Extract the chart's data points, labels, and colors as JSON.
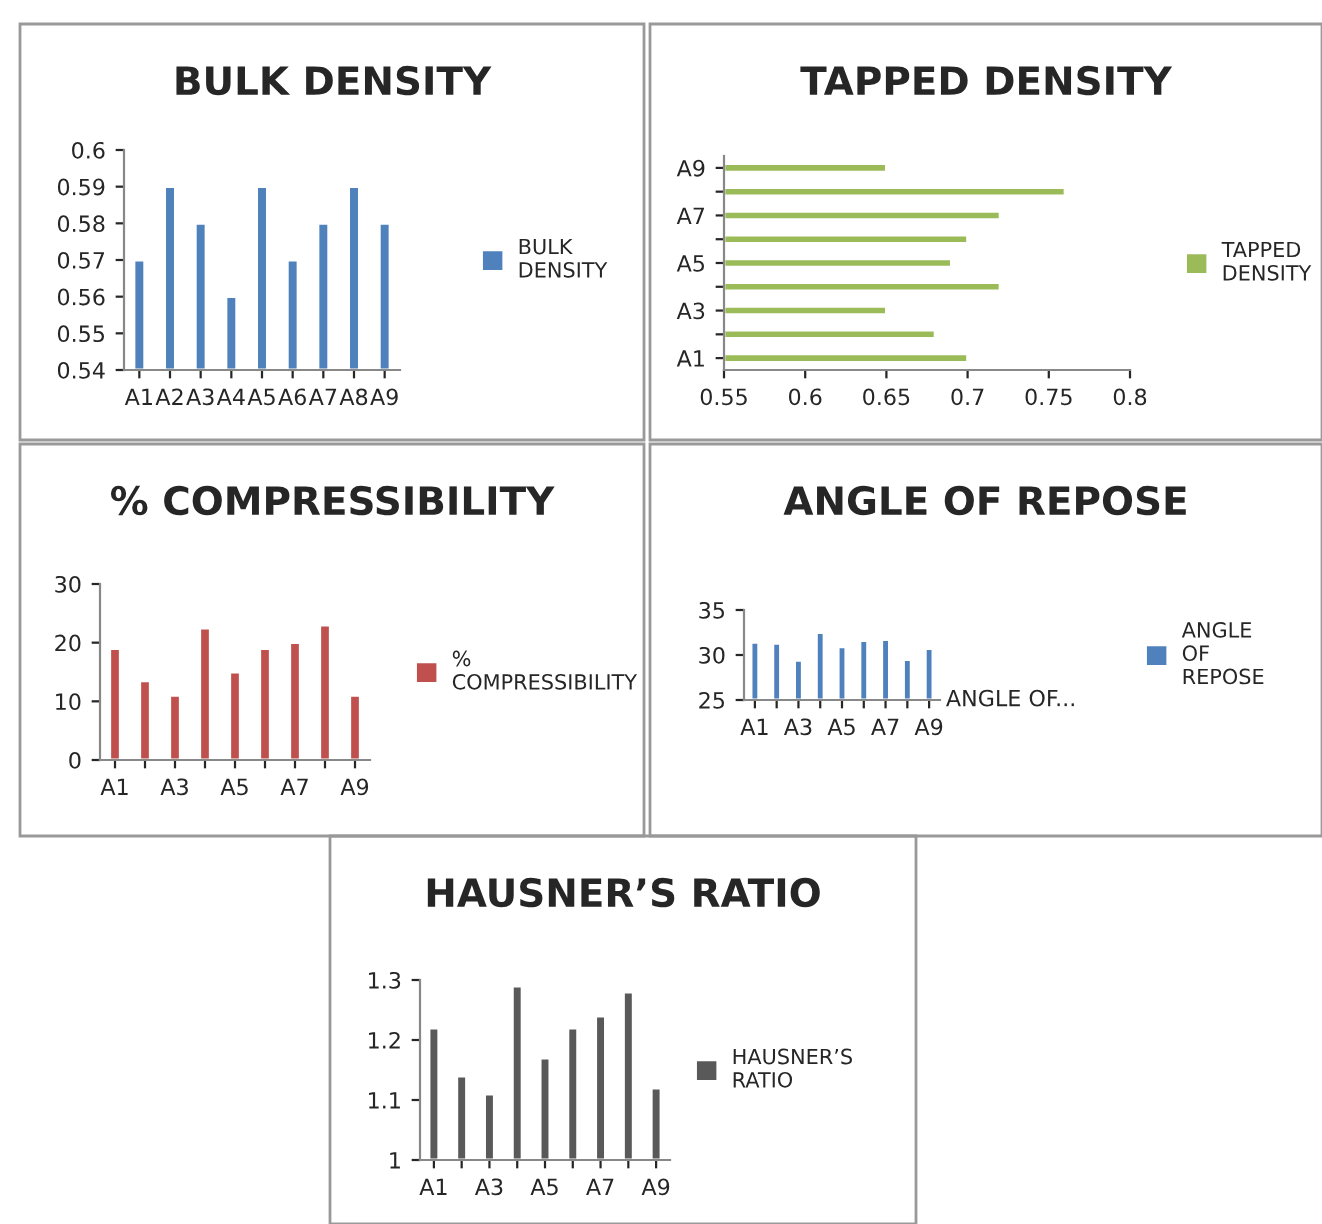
{
  "chart_data": [
    {
      "type": "bar",
      "title": "BULK DENSITY",
      "categories": [
        "A1",
        "A2",
        "A3",
        "A4",
        "A5",
        "A6",
        "A7",
        "A8",
        "A9"
      ],
      "series": [
        {
          "name": "BULK DENSITY",
          "color": "#4f81bd",
          "values": [
            0.57,
            0.59,
            0.58,
            0.56,
            0.59,
            0.57,
            0.58,
            0.59,
            0.58
          ]
        }
      ],
      "ylim": [
        0.54,
        0.6
      ],
      "yticks": [
        0.54,
        0.55,
        0.56,
        0.57,
        0.58,
        0.59,
        0.6
      ],
      "legend": "right",
      "grid": false
    },
    {
      "type": "bar",
      "title": "TAPPED DENSITY",
      "orientation": "horizontal",
      "categories": [
        "A9",
        null,
        "A7",
        null,
        "A5",
        null,
        "A3",
        null,
        "A1"
      ],
      "series": [
        {
          "name": "TAPPED DENSITY",
          "color": "#9bbb59",
          "values": [
            0.65,
            0.76,
            0.72,
            0.7,
            0.69,
            0.72,
            0.65,
            0.68,
            0.7
          ]
        }
      ],
      "xlim": [
        0.55,
        0.8
      ],
      "xticks": [
        0.55,
        0.6,
        0.65,
        0.7,
        0.75,
        0.8
      ],
      "legend": "right",
      "grid": false
    },
    {
      "type": "bar",
      "title": "% COMPRESSIBILITY",
      "categories": [
        "A1",
        null,
        "A3",
        null,
        "A5",
        null,
        "A7",
        null,
        "A9"
      ],
      "series": [
        {
          "name": "% COMPRESSIBILITY",
          "color": "#c0504d",
          "values": [
            19,
            13.5,
            11,
            22.5,
            15,
            19,
            20,
            23,
            11
          ]
        }
      ],
      "ylim": [
        0,
        30
      ],
      "yticks": [
        0,
        10,
        20,
        30
      ],
      "legend": "right",
      "grid": false
    },
    {
      "type": "bar",
      "title": "ANGLE OF REPOSE",
      "categories": [
        "A1",
        null,
        "A3",
        null,
        "A5",
        null,
        "A7",
        null,
        "A9"
      ],
      "series": [
        {
          "name": "ANGLE OF REPOSE",
          "color": "#4f81bd",
          "values": [
            31.4,
            31.3,
            29.4,
            32.5,
            30.9,
            31.6,
            31.7,
            29.5,
            30.7
          ]
        }
      ],
      "ylim": [
        25,
        35
      ],
      "yticks": [
        25,
        30,
        35
      ],
      "legend": "right",
      "grid": false,
      "annotations": [
        "ANGLE OF..."
      ]
    },
    {
      "type": "bar",
      "title": "HAUSNER’S RATIO",
      "categories": [
        "A1",
        null,
        "A3",
        null,
        "A5",
        null,
        "A7",
        null,
        "A9"
      ],
      "series": [
        {
          "name": "HAUSNER’S RATIO",
          "color": "#595959",
          "values": [
            1.22,
            1.14,
            1.11,
            1.29,
            1.17,
            1.22,
            1.24,
            1.28,
            1.12
          ]
        }
      ],
      "ylim": [
        1,
        1.3
      ],
      "yticks": [
        1,
        1.1,
        1.2,
        1.3
      ],
      "legend": "right",
      "grid": false
    }
  ]
}
